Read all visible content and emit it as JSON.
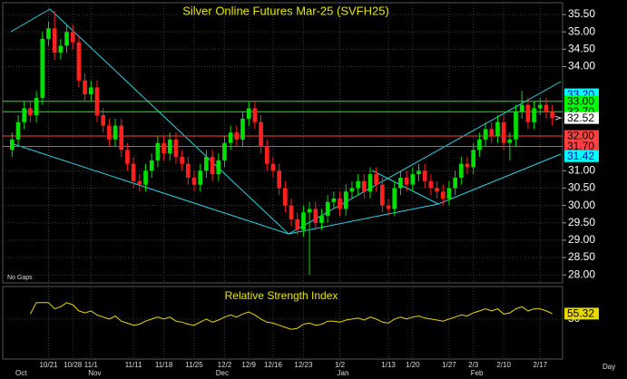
{
  "chart_data": {
    "type": "candlestick",
    "title": "Silver Online Futures Mar-25 (SVFH25)",
    "note": "No Gaps",
    "period": "Day",
    "categories": [
      null,
      null,
      null,
      null,
      null,
      null,
      "10/21",
      null,
      null,
      null,
      "10/28",
      null,
      null,
      "11/1",
      null,
      null,
      null,
      null,
      null,
      null,
      "11/11",
      null,
      null,
      null,
      null,
      "11/18",
      null,
      null,
      null,
      null,
      "11/25",
      null,
      null,
      null,
      null,
      "12/2",
      null,
      null,
      null,
      "12/9",
      null,
      null,
      null,
      "12/16",
      null,
      null,
      null,
      null,
      "12/23",
      null,
      null,
      null,
      null,
      null,
      "1/2",
      null,
      null,
      null,
      null,
      null,
      null,
      null,
      "1/13",
      null,
      null,
      null,
      "1/20",
      null,
      null,
      null,
      null,
      null,
      "1/27",
      null,
      null,
      null,
      "2/3",
      null,
      null,
      null,
      null,
      "2/10",
      null,
      null,
      null,
      null,
      null,
      "2/17",
      null,
      null
    ],
    "months": [
      {
        "index": 1,
        "label": "Oct"
      },
      {
        "index": 13,
        "label": "Nov"
      },
      {
        "index": 34,
        "label": "Dec"
      },
      {
        "index": 54,
        "label": "Jan"
      },
      {
        "index": 76,
        "label": "Feb"
      }
    ],
    "open": [
      31.6,
      31.9,
      32.4,
      32.8,
      32.6,
      33.1,
      34.8,
      35.1,
      34.4,
      34.6,
      35.0,
      34.7,
      33.6,
      33.2,
      33.4,
      32.6,
      32.3,
      31.9,
      32.3,
      31.6,
      31.2,
      30.7,
      30.6,
      31.0,
      31.3,
      31.8,
      31.5,
      31.9,
      31.4,
      31.2,
      30.8,
      30.6,
      31.0,
      31.4,
      30.9,
      31.3,
      31.8,
      32.1,
      31.9,
      32.5,
      32.8,
      32.4,
      31.7,
      31.2,
      31.0,
      30.5,
      30.0,
      29.6,
      29.3,
      29.8,
      29.9,
      29.5,
      29.7,
      30.1,
      30.2,
      29.9,
      30.4,
      30.5,
      30.7,
      30.4,
      30.9,
      30.6,
      30.0,
      29.9,
      30.5,
      30.8,
      30.6,
      30.9,
      31.0,
      30.7,
      30.5,
      30.4,
      30.2,
      30.5,
      30.8,
      31.2,
      31.1,
      31.6,
      31.9,
      32.2,
      32.0,
      32.4,
      31.8,
      31.9,
      32.7,
      32.9,
      32.4,
      32.8,
      32.9,
      32.7
    ],
    "high": [
      32.1,
      32.6,
      33.0,
      33.0,
      33.3,
      35.0,
      35.3,
      35.6,
      34.8,
      35.2,
      35.2,
      34.9,
      33.8,
      33.6,
      33.6,
      32.8,
      32.5,
      32.5,
      32.5,
      31.8,
      31.4,
      30.9,
      31.2,
      31.5,
      32.0,
      32.0,
      32.1,
      32.1,
      31.6,
      31.4,
      31.0,
      31.2,
      31.6,
      31.6,
      31.5,
      32.0,
      32.3,
      32.3,
      32.7,
      33.0,
      33.0,
      32.6,
      31.9,
      31.4,
      31.2,
      30.7,
      30.2,
      29.8,
      30.0,
      30.1,
      30.1,
      29.9,
      30.3,
      30.4,
      30.4,
      30.6,
      30.7,
      30.9,
      30.9,
      31.1,
      31.1,
      30.8,
      30.2,
      30.7,
      31.0,
      31.0,
      31.1,
      31.2,
      31.2,
      30.9,
      30.7,
      30.6,
      30.7,
      31.0,
      31.4,
      31.4,
      31.8,
      32.1,
      32.4,
      32.4,
      32.6,
      32.6,
      32.1,
      32.9,
      33.3,
      33.1,
      33.0,
      33.1,
      33.1,
      32.9
    ],
    "low": [
      31.4,
      31.7,
      32.2,
      32.4,
      32.4,
      32.9,
      34.6,
      34.2,
      34.2,
      34.4,
      34.5,
      33.4,
      33.0,
      33.0,
      32.4,
      32.1,
      31.7,
      31.7,
      31.4,
      31.0,
      30.5,
      30.4,
      30.4,
      30.8,
      31.1,
      31.3,
      31.3,
      31.2,
      31.0,
      30.6,
      30.4,
      30.4,
      30.8,
      30.7,
      30.7,
      31.1,
      31.6,
      31.7,
      31.7,
      32.3,
      32.2,
      31.5,
      31.0,
      30.8,
      30.3,
      29.8,
      29.4,
      29.15,
      29.1,
      28.0,
      29.3,
      29.3,
      29.5,
      29.9,
      29.7,
      29.7,
      30.2,
      30.3,
      30.2,
      30.2,
      30.4,
      29.8,
      29.7,
      29.7,
      30.3,
      30.4,
      30.4,
      30.7,
      30.5,
      30.3,
      30.2,
      30.0,
      30.0,
      30.3,
      30.6,
      30.9,
      30.9,
      31.4,
      31.7,
      31.8,
      31.8,
      31.6,
      31.3,
      31.7,
      32.5,
      32.2,
      32.2,
      32.6,
      32.5,
      32.3
    ],
    "close": [
      31.9,
      32.4,
      32.8,
      32.6,
      33.1,
      34.8,
      35.1,
      34.4,
      34.6,
      35.0,
      34.7,
      33.6,
      33.2,
      33.4,
      32.6,
      32.3,
      31.9,
      32.3,
      31.6,
      31.2,
      30.7,
      30.6,
      31.0,
      31.3,
      31.8,
      31.5,
      31.9,
      31.4,
      31.2,
      30.8,
      30.6,
      31.0,
      31.4,
      30.9,
      31.3,
      31.8,
      32.1,
      31.9,
      32.5,
      32.8,
      32.4,
      31.7,
      31.2,
      31.0,
      30.5,
      30.0,
      29.6,
      29.3,
      29.8,
      29.9,
      29.5,
      29.7,
      30.1,
      30.2,
      29.9,
      30.4,
      30.5,
      30.7,
      30.4,
      30.9,
      30.6,
      30.0,
      29.9,
      30.5,
      30.8,
      30.6,
      30.9,
      31.0,
      30.7,
      30.5,
      30.4,
      30.2,
      30.5,
      30.8,
      31.2,
      31.1,
      31.6,
      31.9,
      32.2,
      32.0,
      32.4,
      31.8,
      31.9,
      32.7,
      32.9,
      32.4,
      32.8,
      32.9,
      32.7,
      32.52
    ],
    "up_color": "#00e000",
    "down_color": "#ff2020",
    "ylim": [
      27.77,
      35.84
    ],
    "yticks": [
      {
        "value": 35.5,
        "label": "35.50"
      },
      {
        "value": 35,
        "label": "35.00"
      },
      {
        "value": 34.5,
        "label": "34.50"
      },
      {
        "value": 34,
        "label": "34.00"
      },
      {
        "value": 31,
        "label": "31.00"
      },
      {
        "value": 30.5,
        "label": "30.50"
      },
      {
        "value": 30,
        "label": "30.00"
      },
      {
        "value": 29.5,
        "label": "29.50"
      },
      {
        "value": 29,
        "label": "29.00"
      },
      {
        "value": 28.5,
        "label": "28.50"
      },
      {
        "value": 28,
        "label": "28.00"
      }
    ],
    "levels": [
      {
        "value": 33.2,
        "label": "33.20",
        "color": "#00ffff",
        "line": false
      },
      {
        "value": 33.0,
        "label": "33.00",
        "color": "#00ff00",
        "line": true
      },
      {
        "value": 32.7,
        "label": "32.70",
        "color": "#00ff00",
        "line": true
      },
      {
        "value": 32.52,
        "label": "32.52",
        "color": "#ffffff",
        "line": false
      },
      {
        "value": 32.0,
        "label": "32.00",
        "color": "#ff4040",
        "line": true
      },
      {
        "value": 31.7,
        "label": "31.70",
        "color": "#ff4040",
        "line": true
      },
      {
        "value": 31.42,
        "label": "31.42",
        "color": "#00ffff",
        "line": false
      }
    ],
    "rsi": {
      "title": "Relative Strength Index",
      "color": "#e8d800",
      "values": [
        null,
        null,
        null,
        55,
        66,
        66,
        66,
        60,
        62,
        66,
        64,
        58,
        56,
        58,
        54,
        52,
        50,
        53,
        48,
        46,
        44,
        45,
        48,
        50,
        52,
        50,
        52,
        48,
        47,
        45,
        44,
        47,
        50,
        47,
        49,
        52,
        54,
        52,
        55,
        57,
        54,
        50,
        47,
        46,
        44,
        42,
        40,
        41,
        45,
        46,
        44,
        45,
        48,
        48,
        47,
        49,
        50,
        51,
        49,
        52,
        50,
        47,
        46,
        50,
        52,
        50,
        52,
        53,
        51,
        50,
        49,
        48,
        50,
        52,
        54,
        53,
        56,
        58,
        60,
        58,
        60,
        55,
        56,
        60,
        62,
        58,
        60,
        60,
        58,
        55.32
      ],
      "value_label": "55.32",
      "ylim": [
        11,
        80
      ],
      "yticks": [
        50
      ]
    }
  }
}
